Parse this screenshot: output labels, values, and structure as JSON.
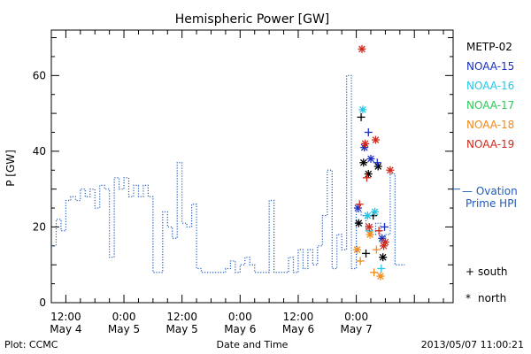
{
  "chart_data": {
    "type": "scatter",
    "title": "Hemispheric Power [GW]",
    "ylabel": "P [GW]",
    "xlabel": "Date and Time",
    "ylim": [
      0,
      72
    ],
    "xlim": [
      "2013-05-04 09:00",
      "2013-05-07 20:00"
    ],
    "yticks": [
      0,
      20,
      40,
      60
    ],
    "xticks": [
      {
        "time": "2013-05-04 12:00",
        "label": "12:00",
        "date": "May 4"
      },
      {
        "time": "2013-05-05 00:00",
        "label": "0:00",
        "date": "May 5"
      },
      {
        "time": "2013-05-05 12:00",
        "label": "12:00",
        "date": "May 5"
      },
      {
        "time": "2013-05-06 00:00",
        "label": "0:00",
        "date": "May 6"
      },
      {
        "time": "2013-05-06 12:00",
        "label": "12:00",
        "date": "May 6"
      },
      {
        "time": "2013-05-07 00:00",
        "label": "0:00",
        "date": "May 7"
      }
    ],
    "ovation": {
      "label_line1": "— Ovation",
      "label_line2": "Prime HPI",
      "color": "#1f5bbf",
      "points": [
        [
          "2013-05-04 09:00",
          15
        ],
        [
          "2013-05-04 10:00",
          22
        ],
        [
          "2013-05-04 11:00",
          19
        ],
        [
          "2013-05-04 12:00",
          27
        ],
        [
          "2013-05-04 13:00",
          28
        ],
        [
          "2013-05-04 14:00",
          27
        ],
        [
          "2013-05-04 15:00",
          30
        ],
        [
          "2013-05-04 16:00",
          28
        ],
        [
          "2013-05-04 17:00",
          30
        ],
        [
          "2013-05-04 18:00",
          25
        ],
        [
          "2013-05-04 19:00",
          31
        ],
        [
          "2013-05-04 20:00",
          30
        ],
        [
          "2013-05-04 21:00",
          12
        ],
        [
          "2013-05-04 22:00",
          33
        ],
        [
          "2013-05-04 23:00",
          30
        ],
        [
          "2013-05-05 00:00",
          33
        ],
        [
          "2013-05-05 01:00",
          28
        ],
        [
          "2013-05-05 02:00",
          31
        ],
        [
          "2013-05-05 03:00",
          28
        ],
        [
          "2013-05-05 04:00",
          31
        ],
        [
          "2013-05-05 05:00",
          28
        ],
        [
          "2013-05-05 06:00",
          8
        ],
        [
          "2013-05-05 08:00",
          24
        ],
        [
          "2013-05-05 09:00",
          20
        ],
        [
          "2013-05-05 10:00",
          17
        ],
        [
          "2013-05-05 11:00",
          37
        ],
        [
          "2013-05-05 12:00",
          21
        ],
        [
          "2013-05-05 13:00",
          20
        ],
        [
          "2013-05-05 14:00",
          26
        ],
        [
          "2013-05-05 15:00",
          9
        ],
        [
          "2013-05-05 16:00",
          8
        ],
        [
          "2013-05-05 21:00",
          9
        ],
        [
          "2013-05-05 22:00",
          11
        ],
        [
          "2013-05-05 23:00",
          8
        ],
        [
          "2013-05-06 00:00",
          10
        ],
        [
          "2013-05-06 01:00",
          12
        ],
        [
          "2013-05-06 02:00",
          10
        ],
        [
          "2013-05-06 03:00",
          8
        ],
        [
          "2013-05-06 06:00",
          27
        ],
        [
          "2013-05-06 07:00",
          8
        ],
        [
          "2013-05-06 10:00",
          12
        ],
        [
          "2013-05-06 11:00",
          8
        ],
        [
          "2013-05-06 12:00",
          14
        ],
        [
          "2013-05-06 13:00",
          9
        ],
        [
          "2013-05-06 14:00",
          14
        ],
        [
          "2013-05-06 15:00",
          10
        ],
        [
          "2013-05-06 16:00",
          15
        ],
        [
          "2013-05-06 17:00",
          23
        ],
        [
          "2013-05-06 18:00",
          35
        ],
        [
          "2013-05-06 19:00",
          9
        ],
        [
          "2013-05-06 20:00",
          18
        ],
        [
          "2013-05-06 21:00",
          14
        ],
        [
          "2013-05-06 22:00",
          60
        ],
        [
          "2013-05-06 23:00",
          9
        ],
        [
          "2013-05-07 00:00",
          24
        ],
        [
          "2013-05-07 01:00",
          23
        ],
        [
          "2013-05-07 02:00",
          19
        ],
        [
          "2013-05-07 03:00",
          18
        ],
        [
          "2013-05-07 04:00",
          21
        ],
        [
          "2013-05-07 05:00",
          16
        ],
        [
          "2013-05-07 06:00",
          18
        ],
        [
          "2013-05-07 07:00",
          34
        ],
        [
          "2013-05-07 08:00",
          10
        ],
        [
          "2013-05-07 09:00",
          10
        ]
      ]
    },
    "series": [
      {
        "name": "METP-02",
        "color": "#000000",
        "points": [
          {
            "t": "2013-05-07 00:30",
            "v": 21,
            "m": "north"
          },
          {
            "t": "2013-05-07 01:00",
            "v": 49,
            "m": "south"
          },
          {
            "t": "2013-05-07 01:30",
            "v": 37,
            "m": "north"
          },
          {
            "t": "2013-05-07 02:30",
            "v": 34,
            "m": "north"
          },
          {
            "t": "2013-05-07 03:30",
            "v": 23,
            "m": "south"
          },
          {
            "t": "2013-05-07 04:30",
            "v": 36,
            "m": "north"
          },
          {
            "t": "2013-05-07 02:00",
            "v": 13,
            "m": "south"
          },
          {
            "t": "2013-05-07 05:30",
            "v": 12,
            "m": "north"
          }
        ]
      },
      {
        "name": "NOAA-15",
        "color": "#1a2fbf",
        "points": [
          {
            "t": "2013-05-07 00:20",
            "v": 25,
            "m": "north"
          },
          {
            "t": "2013-05-07 01:40",
            "v": 41,
            "m": "north"
          },
          {
            "t": "2013-05-07 02:30",
            "v": 45,
            "m": "south"
          },
          {
            "t": "2013-05-07 03:00",
            "v": 38,
            "m": "north"
          },
          {
            "t": "2013-05-07 04:20",
            "v": 37,
            "m": "south"
          },
          {
            "t": "2013-05-07 05:20",
            "v": 17,
            "m": "north"
          },
          {
            "t": "2013-05-07 05:50",
            "v": 20,
            "m": "south"
          }
        ]
      },
      {
        "name": "NOAA-16",
        "color": "#22c8e8",
        "points": [
          {
            "t": "2013-05-07 01:20",
            "v": 51,
            "m": "north"
          },
          {
            "t": "2013-05-07 02:20",
            "v": 23,
            "m": "north"
          },
          {
            "t": "2013-05-07 03:50",
            "v": 24,
            "m": "north"
          },
          {
            "t": "2013-05-07 05:10",
            "v": 9,
            "m": "south"
          },
          {
            "t": "2013-05-07 02:40",
            "v": 19,
            "m": "south"
          }
        ]
      },
      {
        "name": "NOAA-17",
        "color": "#2ec85a",
        "points": []
      },
      {
        "name": "NOAA-18",
        "color": "#f08a1c",
        "points": [
          {
            "t": "2013-05-07 00:10",
            "v": 14,
            "m": "north"
          },
          {
            "t": "2013-05-07 00:50",
            "v": 11,
            "m": "south"
          },
          {
            "t": "2013-05-07 02:50",
            "v": 18,
            "m": "north"
          },
          {
            "t": "2013-05-07 03:40",
            "v": 8,
            "m": "south"
          },
          {
            "t": "2013-05-07 05:00",
            "v": 7,
            "m": "north"
          },
          {
            "t": "2013-05-07 04:10",
            "v": 14,
            "m": "south"
          }
        ]
      },
      {
        "name": "NOAA-19",
        "color": "#d02a1c",
        "points": [
          {
            "t": "2013-05-07 01:10",
            "v": 67,
            "m": "north"
          },
          {
            "t": "2013-05-07 00:40",
            "v": 26,
            "m": "south"
          },
          {
            "t": "2013-05-07 01:50",
            "v": 42,
            "m": "north"
          },
          {
            "t": "2013-05-07 02:10",
            "v": 33,
            "m": "south"
          },
          {
            "t": "2013-05-07 02:40",
            "v": 20,
            "m": "north"
          },
          {
            "t": "2013-05-07 04:00",
            "v": 43,
            "m": "north"
          },
          {
            "t": "2013-05-07 04:40",
            "v": 19,
            "m": "south"
          },
          {
            "t": "2013-05-07 05:40",
            "v": 15,
            "m": "north"
          },
          {
            "t": "2013-05-07 07:00",
            "v": 35,
            "m": "north"
          },
          {
            "t": "2013-05-07 06:00",
            "v": 16,
            "m": "north"
          }
        ]
      }
    ],
    "markers_legend": [
      {
        "symbol": "+",
        "label": "south"
      },
      {
        "symbol": "*",
        "label": "north"
      }
    ]
  },
  "footer": {
    "left": "Plot: CCMC",
    "right": "2013/05/07 11:00:21"
  }
}
